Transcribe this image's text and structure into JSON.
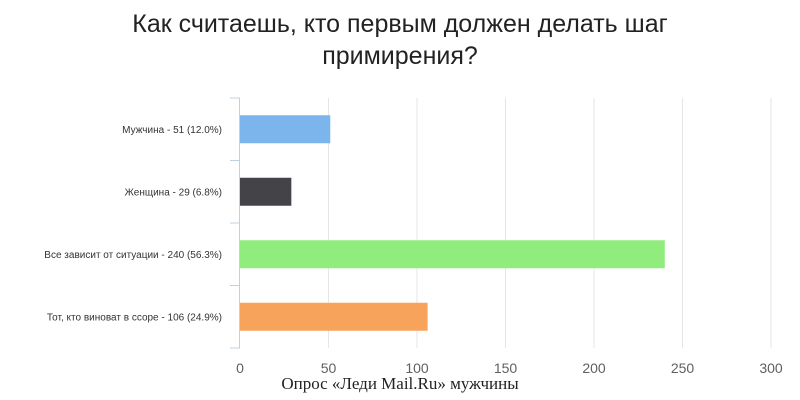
{
  "title_lines": [
    "Как считаешь, кто первым должен делать шаг",
    "примирения?"
  ],
  "footnote": "Опрос «Леди Mail.Ru» мужчины",
  "chart_data": {
    "type": "bar",
    "orientation": "horizontal",
    "title": "Как считаешь, кто первым должен делать шаг примирения?",
    "categories": [
      "Мужчина - 51 (12.0%)",
      "Женщина - 29 (6.8%)",
      "Все зависит от ситуации - 240 (56.3%)",
      "Тот, кто виноват в ссоре - 106 (24.9%)"
    ],
    "values": [
      51,
      29,
      240,
      106
    ],
    "colors": [
      "#7cb5ec",
      "#434348",
      "#90ed7d",
      "#f7a35c"
    ],
    "xlim": [
      0,
      300
    ],
    "xticks": [
      0,
      50,
      100,
      150,
      200,
      250,
      300
    ],
    "grid": true,
    "legend": "none"
  }
}
